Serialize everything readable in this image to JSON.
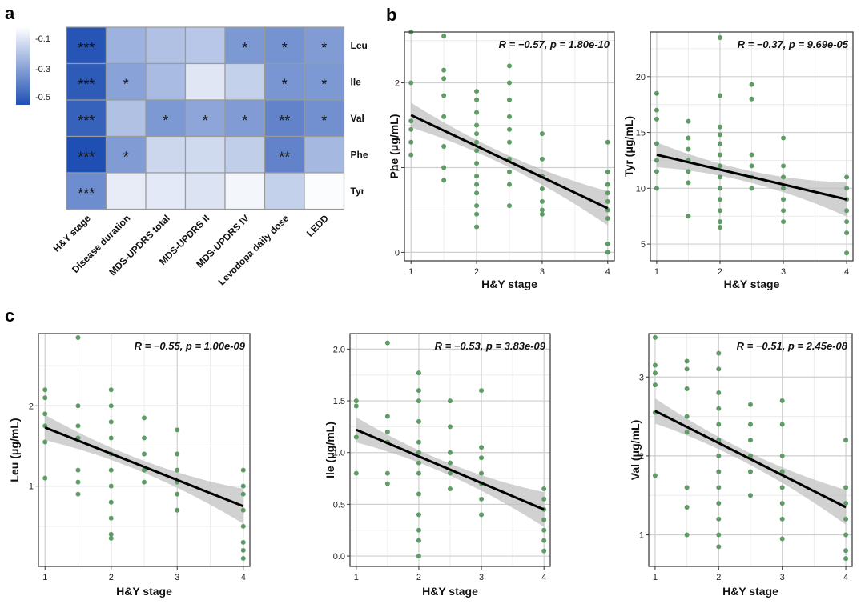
{
  "panel_labels": {
    "a": "a",
    "b": "b",
    "c": "c"
  },
  "heatmap": {
    "rows": [
      "Leu",
      "Ile",
      "Val",
      "Phe",
      "Tyr"
    ],
    "cols": [
      "H&Y stage",
      "Disease duration",
      "MDS-UPDRS total",
      "MDS-UPDRS II",
      "MDS-UPDRS IV",
      "Levodopa daily dose",
      "LEDD"
    ],
    "values": [
      [
        -0.55,
        -0.25,
        -0.2,
        -0.18,
        -0.33,
        -0.35,
        -0.32
      ],
      [
        -0.53,
        -0.3,
        -0.22,
        -0.08,
        -0.15,
        -0.34,
        -0.33
      ],
      [
        -0.51,
        -0.2,
        -0.33,
        -0.29,
        -0.32,
        -0.4,
        -0.36
      ],
      [
        -0.57,
        -0.32,
        -0.13,
        -0.12,
        -0.16,
        -0.4,
        -0.23
      ],
      [
        -0.37,
        -0.06,
        -0.07,
        -0.09,
        -0.03,
        -0.15,
        -0.01
      ]
    ],
    "stars": [
      [
        "***",
        "",
        "",
        "",
        "*",
        "*",
        "*"
      ],
      [
        "***",
        "*",
        "",
        "",
        "",
        "*",
        "*"
      ],
      [
        "***",
        "",
        "*",
        "*",
        "*",
        "**",
        "*"
      ],
      [
        "***",
        "*",
        "",
        "",
        "",
        "**",
        ""
      ],
      [
        "***",
        "",
        "",
        "",
        "",
        "",
        ""
      ]
    ],
    "legend_ticks": [
      "-0.1",
      "-0.3",
      "-0.5"
    ],
    "color_low": "#1f4fb3",
    "color_high": "#ffffff"
  },
  "chart_data": [
    {
      "type": "scatter",
      "panel": "b",
      "title": "",
      "xlabel": "H&Y stage",
      "ylabel": "Phe (μg/mL)",
      "xlim": [
        0.9,
        4.1
      ],
      "ylim": [
        -0.1,
        2.6
      ],
      "xticks": [
        1,
        2,
        3,
        4
      ],
      "yticks": [
        0,
        1,
        2
      ],
      "stat": "R = −0.57, p = 1.80e-10",
      "fit": {
        "x1": 1,
        "y1": 1.62,
        "x2": 4,
        "y2": 0.52
      },
      "points": [
        [
          1,
          2.6
        ],
        [
          1,
          2.0
        ],
        [
          1,
          1.55
        ],
        [
          1,
          1.45
        ],
        [
          1,
          1.3
        ],
        [
          1,
          1.15
        ],
        [
          1.5,
          2.55
        ],
        [
          1.5,
          2.15
        ],
        [
          1.5,
          2.05
        ],
        [
          1.5,
          1.85
        ],
        [
          1.5,
          1.6
        ],
        [
          1.5,
          1.25
        ],
        [
          1.5,
          1.0
        ],
        [
          1.5,
          0.85
        ],
        [
          2,
          1.9
        ],
        [
          2,
          1.8
        ],
        [
          2,
          1.65
        ],
        [
          2,
          1.5
        ],
        [
          2,
          1.4
        ],
        [
          2,
          1.3
        ],
        [
          2,
          1.2
        ],
        [
          2,
          1.05
        ],
        [
          2,
          0.9
        ],
        [
          2,
          0.8
        ],
        [
          2,
          0.7
        ],
        [
          2,
          0.55
        ],
        [
          2,
          0.45
        ],
        [
          2,
          0.3
        ],
        [
          2.5,
          2.2
        ],
        [
          2.5,
          2.0
        ],
        [
          2.5,
          1.8
        ],
        [
          2.5,
          1.6
        ],
        [
          2.5,
          1.45
        ],
        [
          2.5,
          1.3
        ],
        [
          2.5,
          1.1
        ],
        [
          2.5,
          0.95
        ],
        [
          2.5,
          0.8
        ],
        [
          2.5,
          0.55
        ],
        [
          3,
          1.4
        ],
        [
          3,
          1.1
        ],
        [
          3,
          0.9
        ],
        [
          3,
          0.75
        ],
        [
          3,
          0.6
        ],
        [
          3,
          0.5
        ],
        [
          3,
          0.45
        ],
        [
          4,
          1.3
        ],
        [
          4,
          0.95
        ],
        [
          4,
          0.8
        ],
        [
          4,
          0.7
        ],
        [
          4,
          0.6
        ],
        [
          4,
          0.5
        ],
        [
          4,
          0.4
        ],
        [
          4,
          0.1
        ],
        [
          4,
          0.0
        ]
      ]
    },
    {
      "type": "scatter",
      "panel": "b",
      "title": "",
      "xlabel": "H&Y stage",
      "ylabel": "Tyr (μg/mL)",
      "xlim": [
        0.9,
        4.1
      ],
      "ylim": [
        3.5,
        24
      ],
      "xticks": [
        1,
        2,
        3,
        4
      ],
      "yticks": [
        5,
        10,
        15,
        20
      ],
      "stat": "R = −0.37, p = 9.69e-05",
      "fit": {
        "x1": 1,
        "y1": 13.0,
        "x2": 4,
        "y2": 9.0
      },
      "points": [
        [
          1,
          18.5
        ],
        [
          1,
          17.0
        ],
        [
          1,
          16.2
        ],
        [
          1,
          14.0
        ],
        [
          1,
          12.5
        ],
        [
          1,
          11.5
        ],
        [
          1,
          10.0
        ],
        [
          1.5,
          16.0
        ],
        [
          1.5,
          14.5
        ],
        [
          1.5,
          13.5
        ],
        [
          1.5,
          12.5
        ],
        [
          1.5,
          11.5
        ],
        [
          1.5,
          10.5
        ],
        [
          1.5,
          7.5
        ],
        [
          2,
          23.5
        ],
        [
          2,
          18.3
        ],
        [
          2,
          15.5
        ],
        [
          2,
          14.8
        ],
        [
          2,
          14.0
        ],
        [
          2,
          13.0
        ],
        [
          2,
          12.0
        ],
        [
          2,
          11.0
        ],
        [
          2,
          10.0
        ],
        [
          2,
          9.0
        ],
        [
          2,
          8.0
        ],
        [
          2,
          7.0
        ],
        [
          2,
          6.5
        ],
        [
          2.5,
          19.3
        ],
        [
          2.5,
          18.0
        ],
        [
          2.5,
          13.0
        ],
        [
          2.5,
          12.0
        ],
        [
          2.5,
          11.0
        ],
        [
          2.5,
          10.0
        ],
        [
          3,
          14.5
        ],
        [
          3,
          12.0
        ],
        [
          3,
          11.0
        ],
        [
          3,
          10.0
        ],
        [
          3,
          9.0
        ],
        [
          3,
          8.0
        ],
        [
          3,
          7.0
        ],
        [
          4,
          11.0
        ],
        [
          4,
          10.0
        ],
        [
          4,
          9.0
        ],
        [
          4,
          8.0
        ],
        [
          4,
          7.0
        ],
        [
          4,
          6.0
        ],
        [
          4,
          4.2
        ]
      ]
    },
    {
      "type": "scatter",
      "panel": "c",
      "title": "",
      "xlabel": "H&Y stage",
      "ylabel": "Leu (μg/mL)",
      "xlim": [
        0.9,
        4.1
      ],
      "ylim": [
        0.0,
        2.9
      ],
      "xticks": [
        1,
        2,
        3,
        4
      ],
      "yticks": [
        1,
        2
      ],
      "stat": "R = −0.55, p = 1.00e-09",
      "fit": {
        "x1": 1,
        "y1": 1.73,
        "x2": 4,
        "y2": 0.75
      },
      "points": [
        [
          1,
          2.2
        ],
        [
          1,
          2.1
        ],
        [
          1,
          1.9
        ],
        [
          1,
          1.75
        ],
        [
          1,
          1.55
        ],
        [
          1,
          1.1
        ],
        [
          1.5,
          2.85
        ],
        [
          1.5,
          2.0
        ],
        [
          1.5,
          1.75
        ],
        [
          1.5,
          1.6
        ],
        [
          1.5,
          1.2
        ],
        [
          1.5,
          1.05
        ],
        [
          1.5,
          0.9
        ],
        [
          2,
          2.2
        ],
        [
          2,
          2.0
        ],
        [
          2,
          1.8
        ],
        [
          2,
          1.6
        ],
        [
          2,
          1.4
        ],
        [
          2,
          1.2
        ],
        [
          2,
          1.0
        ],
        [
          2,
          0.8
        ],
        [
          2,
          0.6
        ],
        [
          2,
          0.4
        ],
        [
          2,
          0.35
        ],
        [
          2.5,
          1.85
        ],
        [
          2.5,
          1.6
        ],
        [
          2.5,
          1.4
        ],
        [
          2.5,
          1.2
        ],
        [
          2.5,
          1.05
        ],
        [
          3,
          1.7
        ],
        [
          3,
          1.4
        ],
        [
          3,
          1.2
        ],
        [
          3,
          1.05
        ],
        [
          3,
          0.9
        ],
        [
          3,
          0.7
        ],
        [
          4,
          1.2
        ],
        [
          4,
          1.0
        ],
        [
          4,
          0.9
        ],
        [
          4,
          0.7
        ],
        [
          4,
          0.5
        ],
        [
          4,
          0.3
        ],
        [
          4,
          0.2
        ],
        [
          4,
          0.1
        ]
      ]
    },
    {
      "type": "scatter",
      "panel": "c",
      "title": "",
      "xlabel": "H&Y stage",
      "ylabel": "Ile (μg/mL)",
      "xlim": [
        0.9,
        4.1
      ],
      "ylim": [
        -0.1,
        2.15
      ],
      "xticks": [
        1,
        2,
        3,
        4
      ],
      "yticks": [
        0.0,
        0.5,
        1.0,
        1.5,
        2.0
      ],
      "stat": "R = −0.53, p = 3.83e-09",
      "fit": {
        "x1": 1,
        "y1": 1.22,
        "x2": 4,
        "y2": 0.45
      },
      "points": [
        [
          1,
          1.5
        ],
        [
          1,
          1.45
        ],
        [
          1,
          1.15
        ],
        [
          1,
          0.8
        ],
        [
          1.5,
          2.06
        ],
        [
          1.5,
          1.35
        ],
        [
          1.5,
          1.2
        ],
        [
          1.5,
          1.1
        ],
        [
          1.5,
          0.8
        ],
        [
          1.5,
          0.7
        ],
        [
          2,
          1.77
        ],
        [
          2,
          1.6
        ],
        [
          2,
          1.5
        ],
        [
          2,
          1.3
        ],
        [
          2,
          1.1
        ],
        [
          2,
          1.0
        ],
        [
          2,
          0.9
        ],
        [
          2,
          0.8
        ],
        [
          2,
          0.6
        ],
        [
          2,
          0.4
        ],
        [
          2,
          0.25
        ],
        [
          2,
          0.15
        ],
        [
          2,
          0.0
        ],
        [
          2.5,
          1.5
        ],
        [
          2.5,
          1.25
        ],
        [
          2.5,
          1.0
        ],
        [
          2.5,
          0.9
        ],
        [
          2.5,
          0.8
        ],
        [
          2.5,
          0.65
        ],
        [
          3,
          1.6
        ],
        [
          3,
          1.05
        ],
        [
          3,
          0.95
        ],
        [
          3,
          0.8
        ],
        [
          3,
          0.7
        ],
        [
          3,
          0.55
        ],
        [
          3,
          0.4
        ],
        [
          4,
          0.65
        ],
        [
          4,
          0.55
        ],
        [
          4,
          0.45
        ],
        [
          4,
          0.35
        ],
        [
          4,
          0.25
        ],
        [
          4,
          0.15
        ],
        [
          4,
          0.05
        ]
      ]
    },
    {
      "type": "scatter",
      "panel": "c",
      "title": "",
      "xlabel": "H&Y stage",
      "ylabel": "Val (μg/mL)",
      "xlim": [
        0.9,
        4.1
      ],
      "ylim": [
        0.6,
        3.55
      ],
      "xticks": [
        1,
        2,
        3,
        4
      ],
      "yticks": [
        1,
        2,
        3
      ],
      "stat": "R = −0.51, p = 2.45e-08",
      "fit": {
        "x1": 1,
        "y1": 2.57,
        "x2": 4,
        "y2": 1.35
      },
      "points": [
        [
          1,
          3.5
        ],
        [
          1,
          3.15
        ],
        [
          1,
          3.05
        ],
        [
          1,
          2.9
        ],
        [
          1,
          2.55
        ],
        [
          1,
          1.75
        ],
        [
          1.5,
          3.2
        ],
        [
          1.5,
          3.1
        ],
        [
          1.5,
          2.85
        ],
        [
          1.5,
          2.5
        ],
        [
          1.5,
          2.3
        ],
        [
          1.5,
          1.6
        ],
        [
          1.5,
          1.35
        ],
        [
          1.5,
          1.0
        ],
        [
          2,
          3.3
        ],
        [
          2,
          3.1
        ],
        [
          2,
          2.8
        ],
        [
          2,
          2.6
        ],
        [
          2,
          2.4
        ],
        [
          2,
          2.2
        ],
        [
          2,
          2.0
        ],
        [
          2,
          1.8
        ],
        [
          2,
          1.6
        ],
        [
          2,
          1.4
        ],
        [
          2,
          1.2
        ],
        [
          2,
          1.0
        ],
        [
          2,
          0.85
        ],
        [
          2.5,
          2.65
        ],
        [
          2.5,
          2.4
        ],
        [
          2.5,
          2.2
        ],
        [
          2.5,
          2.0
        ],
        [
          2.5,
          1.8
        ],
        [
          2.5,
          1.5
        ],
        [
          3,
          2.7
        ],
        [
          3,
          2.4
        ],
        [
          3,
          2.0
        ],
        [
          3,
          1.8
        ],
        [
          3,
          1.6
        ],
        [
          3,
          1.4
        ],
        [
          3,
          1.2
        ],
        [
          3,
          0.95
        ],
        [
          4,
          2.2
        ],
        [
          4,
          1.6
        ],
        [
          4,
          1.4
        ],
        [
          4,
          1.2
        ],
        [
          4,
          1.0
        ],
        [
          4,
          0.8
        ],
        [
          4,
          0.7
        ]
      ]
    }
  ]
}
